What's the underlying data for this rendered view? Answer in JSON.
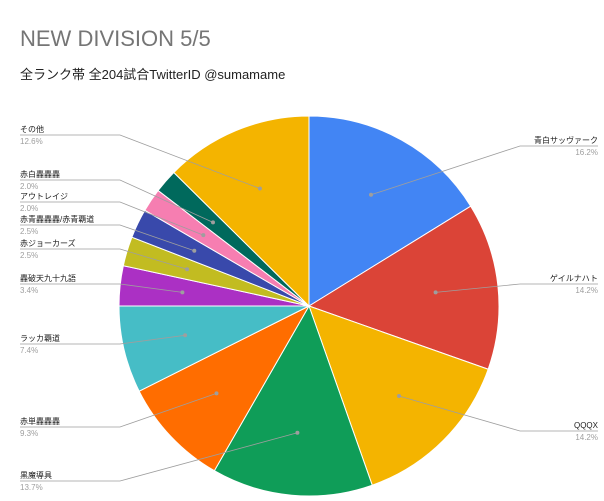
{
  "chart_data": {
    "type": "pie",
    "title": "NEW DIVISION 5/5",
    "subtitle": "全ランク帯 全204試合TwitterID @sumamame",
    "slices": [
      {
        "label": "青白サッヴァーク",
        "percent_label": "16.2%",
        "value": 16.2,
        "color": "#4285f4"
      },
      {
        "label": "ゲイルナハト",
        "percent_label": "14.2%",
        "value": 14.2,
        "color": "#db4437"
      },
      {
        "label": "QQQX",
        "percent_label": "14.2%",
        "value": 14.2,
        "color": "#f4b400"
      },
      {
        "label": "黒魔導具",
        "percent_label": "13.7%",
        "value": 13.7,
        "color": "#0f9d58"
      },
      {
        "label": "赤単轟轟轟",
        "percent_label": "9.3%",
        "value": 9.3,
        "color": "#ff6d00"
      },
      {
        "label": "ラッカ覇道",
        "percent_label": "7.4%",
        "value": 7.4,
        "color": "#46bdc6"
      },
      {
        "label": "轟破天九十九語",
        "percent_label": "3.4%",
        "value": 3.4,
        "color": "#ab30c4"
      },
      {
        "label": "赤ジョーカーズ",
        "percent_label": "2.5%",
        "value": 2.5,
        "color": "#c2bc21"
      },
      {
        "label": "赤青轟轟轟/赤青覇道",
        "percent_label": "2.5%",
        "value": 2.5,
        "color": "#3949ab"
      },
      {
        "label": "アウトレイジ",
        "percent_label": "2.0%",
        "value": 2.0,
        "color": "#f67eb1"
      },
      {
        "label": "赤白轟轟轟",
        "percent_label": "2.0%",
        "value": 2.0,
        "color": "#00695c"
      },
      {
        "label": "その他",
        "percent_label": "12.6%",
        "value": 12.6,
        "color": "#f4b400"
      }
    ],
    "legend": "none"
  }
}
